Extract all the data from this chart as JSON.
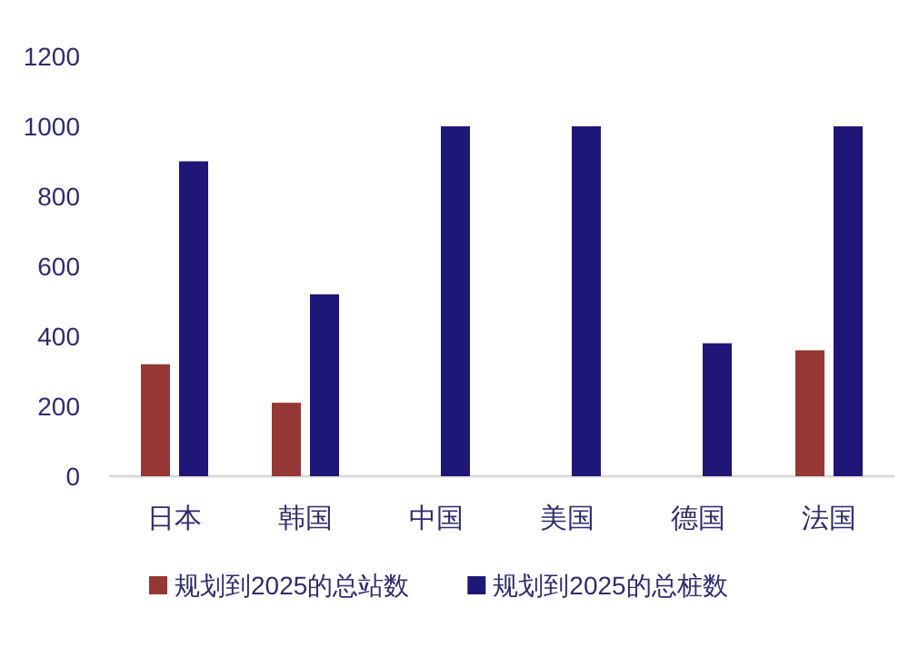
{
  "chart_data": {
    "type": "bar",
    "categories": [
      "日本",
      "韩国",
      "中国",
      "美国",
      "德国",
      "法国"
    ],
    "series": [
      {
        "name": "规划到2025的总站数",
        "color": "#953735",
        "values": [
          320,
          210,
          null,
          null,
          null,
          360
        ]
      },
      {
        "name": "规划到2025的总桩数",
        "color": "#1f1777",
        "values": [
          900,
          520,
          1000,
          1000,
          380,
          1000
        ]
      }
    ],
    "ylim": [
      0,
      1200
    ],
    "yticks": [
      0,
      200,
      400,
      600,
      800,
      1000,
      1200
    ],
    "grid": false,
    "legend": "bottom"
  }
}
